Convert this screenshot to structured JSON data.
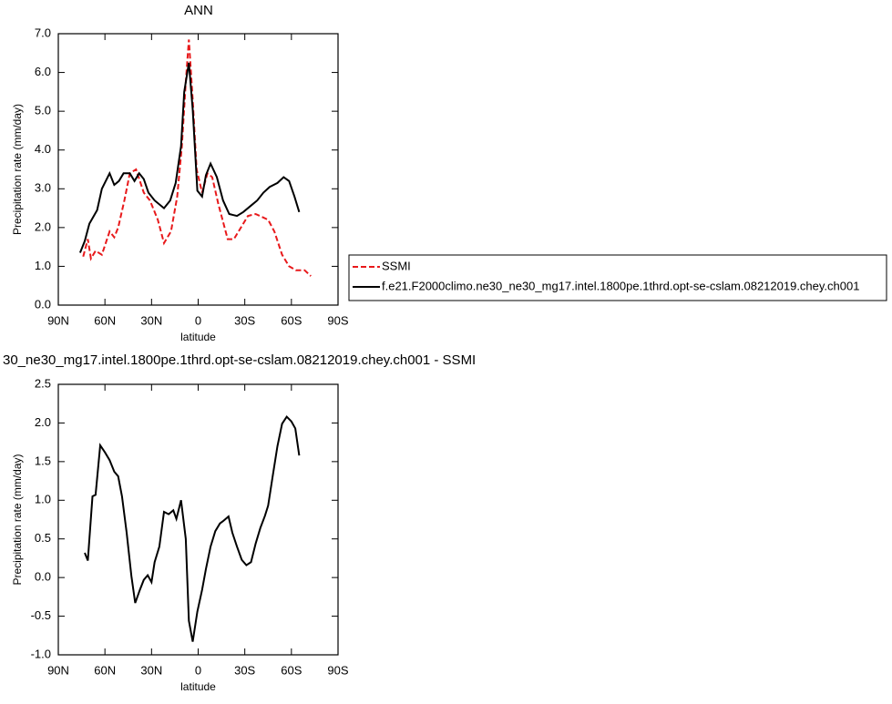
{
  "chart_data": [
    {
      "type": "line",
      "title": "ANN",
      "xlabel": "latitude",
      "ylabel": "Precipitation rate (mm/day)",
      "xlim": [
        90,
        -90
      ],
      "xticks": [
        {
          "value": 90,
          "label": "90N"
        },
        {
          "value": 60,
          "label": "60N"
        },
        {
          "value": 30,
          "label": "30N"
        },
        0,
        {
          "value": -30,
          "label": "30S"
        },
        {
          "value": -60,
          "label": "60S"
        },
        {
          "value": -90,
          "label": "90S"
        }
      ],
      "ylim": [
        0,
        7
      ],
      "yticks": [
        {
          "value": 0,
          "label": "0.0"
        },
        {
          "value": 1,
          "label": "1.0"
        },
        {
          "value": 2,
          "label": "2.0"
        },
        {
          "value": 3,
          "label": "3.0"
        },
        {
          "value": 4,
          "label": "4.0"
        },
        {
          "value": 5,
          "label": "5.0"
        },
        {
          "value": 6,
          "label": "6.0"
        },
        {
          "value": 7,
          "label": "7.0"
        }
      ],
      "legend": "right",
      "series": [
        {
          "name": "SSMI",
          "color": "#e8191b",
          "line_style": "dashed",
          "x": [
            74,
            71,
            69,
            66,
            62,
            57,
            54,
            51.5,
            47.5,
            44,
            40,
            35,
            31,
            26,
            22,
            17.5,
            13.5,
            10.5,
            8,
            6,
            3.5,
            1,
            -2.5,
            -6,
            -9,
            -13,
            -19,
            -23,
            -27.5,
            -32,
            -37,
            -45,
            -49,
            -54,
            -58.5,
            -63,
            -68.5,
            -72.5
          ],
          "values": [
            1.25,
            1.7,
            1.2,
            1.4,
            1.3,
            1.9,
            1.75,
            2.0,
            2.7,
            3.4,
            3.5,
            2.9,
            2.7,
            2.2,
            1.6,
            1.9,
            2.8,
            4.1,
            5.75,
            6.85,
            5.3,
            3.5,
            2.9,
            3.4,
            3.3,
            2.6,
            1.7,
            1.7,
            2.0,
            2.3,
            2.35,
            2.2,
            1.9,
            1.3,
            1.0,
            0.9,
            0.9,
            0.75
          ]
        },
        {
          "name": "f.e21.F2000climo.ne30_ne30_mg17.intel.1800pe.1thrd.opt-se-cslam.08212019.chey.ch001",
          "color": "#000000",
          "line_style": "solid",
          "x": [
            76,
            73,
            70,
            65,
            62,
            57,
            54,
            51,
            48,
            44,
            41,
            38,
            35,
            32,
            28,
            22,
            18,
            14.5,
            11,
            9,
            6,
            3.5,
            0.5,
            -2.5,
            -5,
            -8,
            -12,
            -16,
            -20,
            -25,
            -29,
            -35,
            -38,
            -42,
            -46,
            -51,
            -55,
            -58.5,
            -62,
            -65
          ],
          "values": [
            1.35,
            1.65,
            2.1,
            2.45,
            3.0,
            3.4,
            3.1,
            3.2,
            3.4,
            3.4,
            3.2,
            3.4,
            3.25,
            2.9,
            2.7,
            2.5,
            2.7,
            3.15,
            4.1,
            5.5,
            6.25,
            5.05,
            2.95,
            2.8,
            3.35,
            3.65,
            3.3,
            2.7,
            2.35,
            2.3,
            2.4,
            2.6,
            2.7,
            2.9,
            3.05,
            3.15,
            3.3,
            3.2,
            2.8,
            2.4
          ]
        }
      ]
    },
    {
      "type": "line",
      "title": "30_ne30_mg17.intel.1800pe.1thrd.opt-se-cslam.08212019.chey.ch001 - SSMI",
      "xlabel": "latitude",
      "ylabel": "Precipitation rate (mm/day)",
      "xlim": [
        90,
        -90
      ],
      "xticks": [
        {
          "value": 90,
          "label": "90N"
        },
        {
          "value": 60,
          "label": "60N"
        },
        {
          "value": 30,
          "label": "30N"
        },
        0,
        {
          "value": -30,
          "label": "30S"
        },
        {
          "value": -60,
          "label": "60S"
        },
        {
          "value": -90,
          "label": "90S"
        }
      ],
      "ylim": [
        -1,
        2.5
      ],
      "yticks": [
        {
          "value": -1,
          "label": "-1.0"
        },
        {
          "value": -0.5,
          "label": "-0.5"
        },
        {
          "value": 0,
          "label": "0.0"
        },
        0.5,
        {
          "value": 1,
          "label": "1.0"
        },
        1.5,
        {
          "value": 2,
          "label": "2.0"
        },
        2.5
      ],
      "series": [
        {
          "color": "#000000",
          "line_style": "solid",
          "x": [
            73,
            71,
            68,
            66,
            63,
            60,
            57,
            54,
            51.5,
            49,
            46,
            43,
            40.5,
            37.5,
            35,
            32.5,
            30,
            28,
            25,
            22,
            19,
            16,
            14,
            11,
            8,
            6,
            3.5,
            0.5,
            -2.5,
            -5,
            -8,
            -11,
            -14,
            -16,
            -19.5,
            -22,
            -25,
            -28,
            -31,
            -34,
            -37,
            -40,
            -43,
            -45,
            -48,
            -51,
            -54,
            -57,
            -60,
            -62.5,
            -65
          ],
          "values": [
            0.32,
            0.22,
            1.05,
            1.07,
            1.71,
            1.62,
            1.52,
            1.37,
            1.31,
            1.05,
            0.58,
            0.02,
            -0.33,
            -0.16,
            -0.03,
            0.03,
            -0.06,
            0.2,
            0.4,
            0.85,
            0.82,
            0.87,
            0.76,
            1.0,
            0.5,
            -0.56,
            -0.83,
            -0.44,
            -0.16,
            0.11,
            0.4,
            0.6,
            0.7,
            0.73,
            0.79,
            0.58,
            0.4,
            0.23,
            0.16,
            0.2,
            0.44,
            0.64,
            0.8,
            0.93,
            1.32,
            1.7,
            1.99,
            2.08,
            2.02,
            1.93,
            1.58
          ]
        }
      ]
    }
  ]
}
